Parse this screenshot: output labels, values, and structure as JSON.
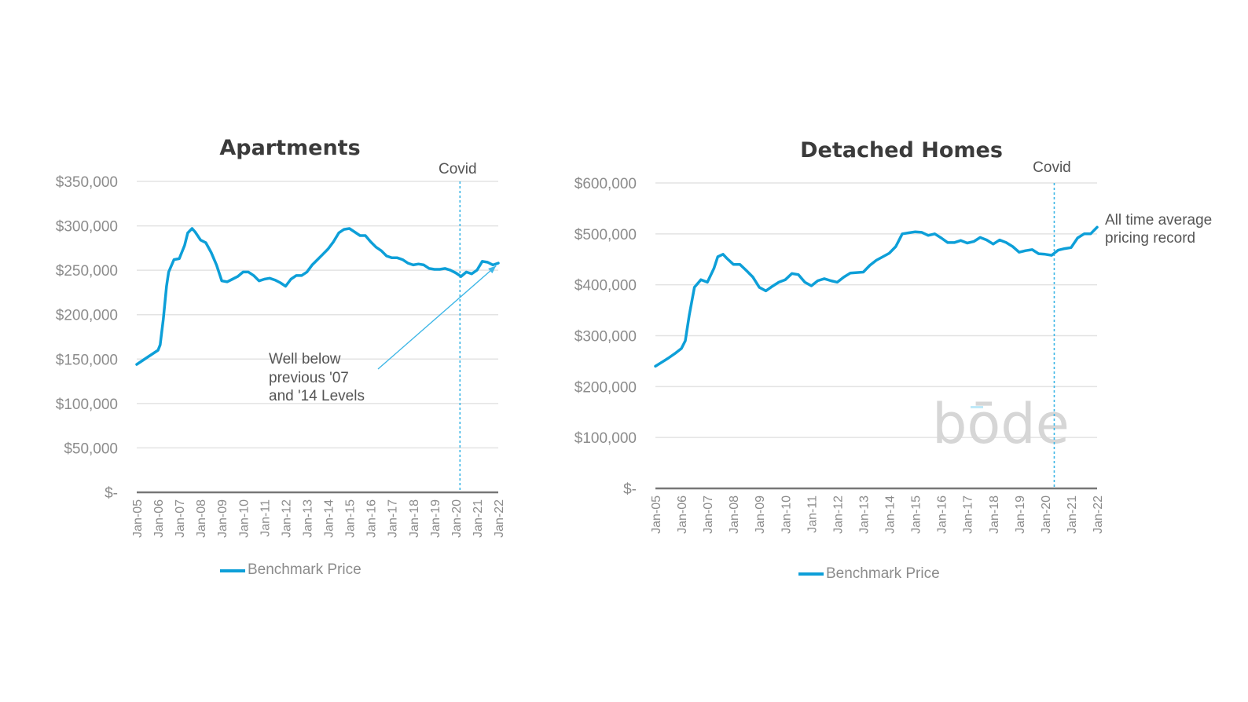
{
  "colors": {
    "series": "#0d9fd8",
    "covid_line": "#3db6e6",
    "arrow": "#3db6e6",
    "watermark_bar": "#bfe9f8"
  },
  "watermark": {
    "text": "bōde"
  },
  "chart_data": [
    {
      "type": "line",
      "title": "Apartments",
      "xlabel": "",
      "ylabel": "",
      "ylim": [
        0,
        350000
      ],
      "yticks": [
        0,
        50000,
        100000,
        150000,
        200000,
        250000,
        300000,
        350000
      ],
      "ytick_labels": [
        "$-",
        "$50,000",
        "$100,000",
        "$150,000",
        "$200,000",
        "$250,000",
        "$300,000",
        "$350,000"
      ],
      "xlim": [
        2005.0,
        2022.0
      ],
      "xtick_labels": [
        "Jan-05",
        "Jan-06",
        "Jan-07",
        "Jan-08",
        "Jan-09",
        "Jan-10",
        "Jan-11",
        "Jan-12",
        "Jan-13",
        "Jan-14",
        "Jan-15",
        "Jan-16",
        "Jan-17",
        "Jan-18",
        "Jan-19",
        "Jan-20",
        "Jan-21",
        "Jan-22"
      ],
      "grid": true,
      "legend": {
        "position": "bottom",
        "entries": [
          "Benchmark Price"
        ]
      },
      "vertical_marker": {
        "x": 2020.2,
        "label": "Covid"
      },
      "annotation": {
        "lines": [
          "Well below",
          "previous '07",
          "and '14 Levels"
        ],
        "arrow_to": {
          "x": 2021.9,
          "y": 255000
        },
        "arrow_from": {
          "x": 2016.5,
          "y": 140000
        }
      },
      "series": [
        {
          "name": "Benchmark Price",
          "x": [
            2005.0,
            2005.25,
            2005.5,
            2005.75,
            2006.0,
            2006.1,
            2006.25,
            2006.4,
            2006.5,
            2006.75,
            2007.0,
            2007.25,
            2007.4,
            2007.6,
            2007.75,
            2008.0,
            2008.25,
            2008.5,
            2008.75,
            2009.0,
            2009.25,
            2009.5,
            2009.75,
            2010.0,
            2010.25,
            2010.5,
            2010.75,
            2011.0,
            2011.25,
            2011.5,
            2011.75,
            2012.0,
            2012.25,
            2012.5,
            2012.75,
            2013.0,
            2013.25,
            2013.5,
            2013.75,
            2014.0,
            2014.25,
            2014.5,
            2014.75,
            2015.0,
            2015.25,
            2015.5,
            2015.75,
            2016.0,
            2016.25,
            2016.5,
            2016.75,
            2017.0,
            2017.25,
            2017.5,
            2017.75,
            2018.0,
            2018.25,
            2018.5,
            2018.75,
            2019.0,
            2019.25,
            2019.5,
            2019.75,
            2020.0,
            2020.25,
            2020.5,
            2020.75,
            2021.0,
            2021.25,
            2021.5,
            2021.75,
            2022.0
          ],
          "values": [
            144000,
            148000,
            152000,
            156000,
            160000,
            166000,
            195000,
            232000,
            248000,
            262000,
            263000,
            278000,
            292000,
            297000,
            293000,
            284000,
            281000,
            270000,
            256000,
            238000,
            237000,
            240000,
            243000,
            248000,
            248000,
            244000,
            238000,
            240000,
            241000,
            239000,
            236000,
            232000,
            240000,
            244000,
            244000,
            248000,
            256000,
            262000,
            268000,
            274000,
            282000,
            292000,
            296000,
            297000,
            293000,
            289000,
            289000,
            282000,
            276000,
            272000,
            266000,
            264000,
            264000,
            262000,
            258000,
            256000,
            257000,
            256000,
            252000,
            251000,
            251000,
            252000,
            250000,
            247000,
            243000,
            248000,
            246000,
            250000,
            260000,
            259000,
            256000,
            258000
          ]
        }
      ]
    },
    {
      "type": "line",
      "title": "Detached Homes",
      "xlabel": "",
      "ylabel": "",
      "ylim": [
        0,
        600000
      ],
      "yticks": [
        0,
        100000,
        200000,
        300000,
        400000,
        500000,
        600000
      ],
      "ytick_labels": [
        "$-",
        "$100,000",
        "$200,000",
        "$300,000",
        "$400,000",
        "$500,000",
        "$600,000"
      ],
      "xlim": [
        2005.0,
        2022.0
      ],
      "xtick_labels": [
        "Jan-05",
        "Jan-06",
        "Jan-07",
        "Jan-08",
        "Jan-09",
        "Jan-10",
        "Jan-11",
        "Jan-12",
        "Jan-13",
        "Jan-14",
        "Jan-15",
        "Jan-16",
        "Jan-17",
        "Jan-18",
        "Jan-19",
        "Jan-20",
        "Jan-21",
        "Jan-22"
      ],
      "grid": true,
      "legend": {
        "position": "bottom",
        "entries": [
          "Benchmark Price"
        ]
      },
      "vertical_marker": {
        "x": 2020.35,
        "label": "Covid"
      },
      "annotation": {
        "lines": [
          "All time average",
          "pricing record"
        ]
      },
      "series": [
        {
          "name": "Benchmark Price",
          "x": [
            2005.0,
            2005.25,
            2005.5,
            2005.75,
            2006.0,
            2006.15,
            2006.3,
            2006.5,
            2006.75,
            2007.0,
            2007.25,
            2007.4,
            2007.6,
            2007.75,
            2008.0,
            2008.25,
            2008.5,
            2008.75,
            2009.0,
            2009.25,
            2009.5,
            2009.75,
            2010.0,
            2010.25,
            2010.5,
            2010.75,
            2011.0,
            2011.25,
            2011.5,
            2011.75,
            2012.0,
            2012.25,
            2012.5,
            2012.75,
            2013.0,
            2013.25,
            2013.5,
            2013.75,
            2014.0,
            2014.25,
            2014.5,
            2014.75,
            2015.0,
            2015.25,
            2015.5,
            2015.75,
            2016.0,
            2016.25,
            2016.5,
            2016.75,
            2017.0,
            2017.25,
            2017.5,
            2017.75,
            2018.0,
            2018.25,
            2018.5,
            2018.75,
            2019.0,
            2019.25,
            2019.5,
            2019.75,
            2020.0,
            2020.25,
            2020.5,
            2020.75,
            2021.0,
            2021.25,
            2021.5,
            2021.75,
            2022.0
          ],
          "values": [
            240000,
            248000,
            256000,
            265000,
            275000,
            290000,
            340000,
            395000,
            410000,
            405000,
            432000,
            455000,
            460000,
            452000,
            440000,
            440000,
            428000,
            415000,
            395000,
            388000,
            397000,
            405000,
            410000,
            422000,
            420000,
            405000,
            398000,
            408000,
            412000,
            408000,
            405000,
            415000,
            423000,
            424000,
            425000,
            438000,
            448000,
            455000,
            462000,
            475000,
            500000,
            502000,
            504000,
            503000,
            497000,
            500000,
            492000,
            483000,
            483000,
            487000,
            482000,
            485000,
            493000,
            488000,
            480000,
            488000,
            483000,
            475000,
            464000,
            467000,
            469000,
            461000,
            460000,
            458000,
            468000,
            471000,
            473000,
            492000,
            500000,
            500000,
            513000
          ]
        }
      ]
    }
  ]
}
